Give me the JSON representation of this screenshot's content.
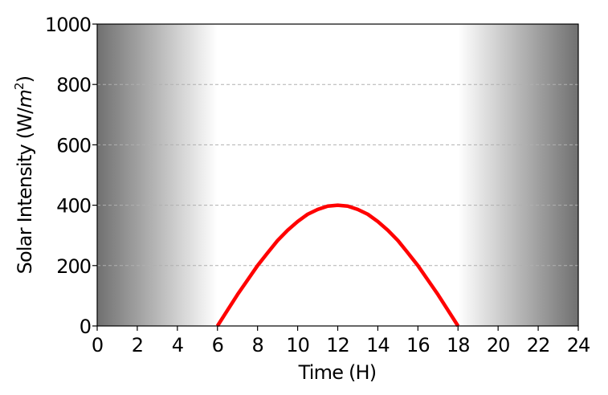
{
  "chart_data": {
    "type": "line",
    "xlabel": "Time (H)",
    "ylabel_main": "Solar Intensity (W/",
    "ylabel_unit": "m",
    "ylabel_exp": "2",
    "ylabel_close": ")",
    "xlim": [
      0,
      24
    ],
    "ylim": [
      0,
      1000
    ],
    "xticks": [
      0,
      2,
      4,
      6,
      8,
      10,
      12,
      14,
      16,
      18,
      20,
      22,
      24
    ],
    "yticks": [
      0,
      200,
      400,
      600,
      800,
      1000
    ],
    "grid": "horizontal dashed",
    "series": [
      {
        "color": "#ff0000",
        "x": [
          6,
          6.5,
          7,
          7.5,
          8,
          8.5,
          9,
          9.5,
          10,
          10.5,
          11,
          11.5,
          12,
          12.5,
          13,
          13.5,
          14,
          14.5,
          15,
          15.5,
          16,
          16.5,
          17,
          17.5,
          18
        ],
        "y": [
          0,
          52,
          104,
          152,
          200,
          242,
          283,
          317,
          346,
          370,
          386,
          397,
          400,
          397,
          386,
          370,
          346,
          317,
          283,
          242,
          200,
          152,
          104,
          52,
          0
        ]
      }
    ],
    "background": "night shading: dark grey at 0 h and 24 h fading to white by 6 h and 18 h"
  }
}
